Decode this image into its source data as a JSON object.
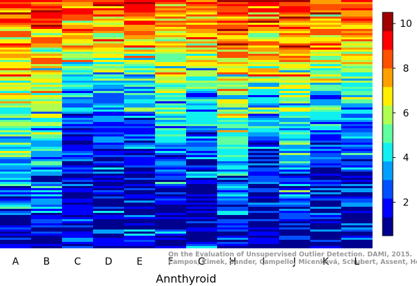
{
  "chart_data": {
    "type": "heatmap",
    "title": "",
    "xlabel": "Annthyroid",
    "ylabel": "",
    "categories": [
      "A",
      "B",
      "C",
      "D",
      "E",
      "F",
      "G",
      "H",
      "I",
      "J",
      "K",
      "L"
    ],
    "colorbar": {
      "ticks": [
        2,
        4,
        6,
        8,
        10
      ],
      "range": [
        0.5,
        10.5
      ],
      "colors": [
        "#00008F",
        "#0000FF",
        "#0050FF",
        "#00A0FF",
        "#10F0EF",
        "#60FF9F",
        "#B0FF50",
        "#FFEF00",
        "#FFA000",
        "#FF5000",
        "#FF0000",
        "#9F0000"
      ]
    },
    "column_profiles": {
      "description": "",
      "A": [
        10,
        10,
        9.5,
        9,
        8.5,
        8,
        7.5,
        7,
        6.5,
        6,
        5.5,
        5,
        4.5,
        4,
        3.5,
        3,
        2.5,
        2,
        1.5,
        1
      ],
      "B": [
        10,
        10,
        9.5,
        9,
        8.5,
        8,
        7.5,
        7,
        6.5,
        6,
        5.5,
        5,
        4.5,
        4,
        3.5,
        3,
        2.5,
        2,
        1.5,
        1
      ],
      "C": [
        10.5,
        10,
        9.5,
        8.5,
        7.5,
        6.5,
        5.5,
        4.5,
        4,
        3.5,
        3,
        2.5,
        2.2,
        2,
        2,
        1.8,
        1.5,
        1.3,
        1.2,
        1
      ],
      "D": [
        10.5,
        10,
        9.5,
        8.5,
        7.5,
        6.5,
        5.5,
        4.5,
        4,
        3.5,
        3,
        2.5,
        2.2,
        2,
        2,
        1.8,
        1.5,
        1.3,
        1.2,
        1
      ],
      "E": [
        10.5,
        10,
        9.5,
        8.5,
        7.5,
        6.5,
        5.5,
        4.5,
        4,
        3.5,
        3,
        2.5,
        2.2,
        2,
        2,
        1.8,
        1.5,
        1.3,
        1.2,
        1
      ],
      "F": [
        9.5,
        9,
        8.5,
        8,
        7.5,
        7,
        6.5,
        6,
        5.5,
        5,
        4.5,
        4,
        3.5,
        3,
        2.5,
        2,
        1.8,
        1.5,
        1.2,
        1
      ],
      "G": [
        10,
        9.5,
        9,
        8.5,
        8,
        7,
        6,
        5,
        4.5,
        4,
        3.5,
        3,
        2.5,
        2,
        1.8,
        1.5,
        1.2,
        1,
        1,
        1
      ],
      "H": [
        10.5,
        10,
        9.5,
        9,
        8.5,
        8,
        7.5,
        7,
        6.5,
        6,
        5.5,
        5,
        4.5,
        4,
        3.5,
        3,
        2.5,
        2,
        1.5,
        1
      ],
      "I": [
        10.5,
        10,
        9.5,
        9,
        8.5,
        8,
        7,
        6,
        5,
        4,
        3.5,
        3,
        2.5,
        2,
        1.8,
        1.5,
        1.2,
        1,
        1,
        1
      ],
      "J": [
        10,
        10,
        9.5,
        9,
        8.5,
        8,
        7.5,
        7,
        6.5,
        6,
        5.5,
        5,
        4.5,
        4,
        3.5,
        3,
        2.5,
        2,
        1.5,
        1
      ],
      "K": [
        10,
        9.5,
        9,
        8.5,
        8,
        7,
        6,
        5,
        4.5,
        4,
        3.5,
        3,
        2.5,
        2,
        1.8,
        1.5,
        1.2,
        1,
        1,
        1
      ],
      "L": [
        10,
        9.5,
        9,
        8.5,
        8,
        7,
        6,
        5,
        4.5,
        4,
        3.5,
        3,
        2.5,
        2,
        1.8,
        1.5,
        1.2,
        1,
        1,
        1
      ]
    }
  },
  "watermark": {
    "line1": "On the Evaluation of Unsupervised Outlier Detection. DAMI, 2015.",
    "line2": "Campos, Zimek, Sander, Campello, Micenková, Schubert, Assent, Houle"
  }
}
